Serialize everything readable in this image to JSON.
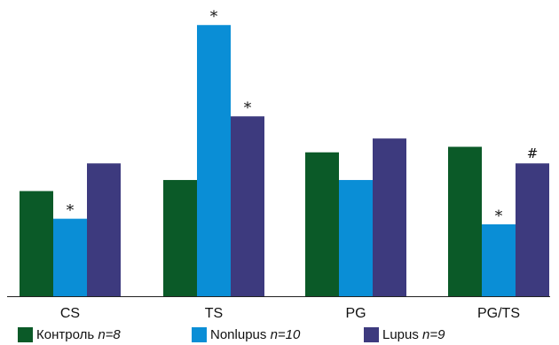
{
  "chart_data": {
    "type": "bar",
    "categories": [
      "CS",
      "TS",
      "PG",
      "PG/TS"
    ],
    "series": [
      {
        "name": "Контроль",
        "n_label": "n=8",
        "color": "#0b5a28",
        "values": [
          38,
          42,
          52,
          54
        ],
        "markers": [
          "",
          "",
          "",
          ""
        ]
      },
      {
        "name": "Nonlupus",
        "n_label": "n=10",
        "color": "#0a8ed6",
        "values": [
          28,
          98,
          42,
          26
        ],
        "markers": [
          "*",
          "*",
          "",
          "*"
        ]
      },
      {
        "name": "Lupus",
        "n_label": "n=9",
        "color": "#3d3a7e",
        "values": [
          48,
          65,
          57,
          48
        ],
        "markers": [
          "",
          "*",
          "",
          "#"
        ]
      }
    ],
    "ylim": [
      0,
      100
    ],
    "grid": false,
    "legend_position": "bottom"
  }
}
